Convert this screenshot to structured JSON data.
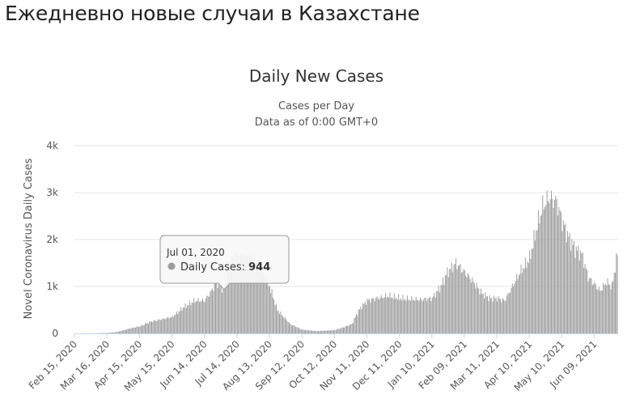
{
  "page": {
    "heading": "Ежедневно новые случаи в Казахстане"
  },
  "colors": {
    "bar": "#9c9c9c",
    "grid": "#e6e6e6",
    "axis": "#ccd6eb"
  },
  "chart_data": {
    "type": "bar",
    "title": "Daily New Cases",
    "subtitle_lines": [
      "Cases per Day",
      "Data as of 0:00 GMT+0"
    ],
    "ylabel": "Novel Coronavirus Daily Cases",
    "xlabel": "",
    "ylim": [
      0,
      4000
    ],
    "y_ticks": [
      {
        "value": 0,
        "label": "0"
      },
      {
        "value": 1000,
        "label": "1k"
      },
      {
        "value": 2000,
        "label": "2k"
      },
      {
        "value": 3000,
        "label": "3k"
      },
      {
        "value": 4000,
        "label": "4k"
      }
    ],
    "x_start": "2020-02-15",
    "x_end": "2021-06-30",
    "x_tick_labels": [
      "Feb 15, 2020",
      "Mar 16, 2020",
      "Apr 15, 2020",
      "May 15, 2020",
      "Jun 14, 2020",
      "Jul 14, 2020",
      "Aug 13, 2020",
      "Sep 12, 2020",
      "Oct 12, 2020",
      "Nov 11, 2020",
      "Dec 11, 2020",
      "Jan 10, 2021",
      "Feb 09, 2021",
      "Mar 11, 2021",
      "Apr 10, 2021",
      "May 10, 2021",
      "Jun 09, 2021"
    ],
    "x_tick_dates": [
      "2020-02-15",
      "2020-03-16",
      "2020-04-15",
      "2020-05-15",
      "2020-06-14",
      "2020-07-14",
      "2020-08-13",
      "2020-09-12",
      "2020-10-12",
      "2020-11-11",
      "2020-12-11",
      "2021-01-10",
      "2021-02-09",
      "2021-03-11",
      "2021-04-10",
      "2021-05-10",
      "2021-06-09"
    ],
    "series": [
      {
        "dates": [
          "2020-02-15",
          "2020-03-01",
          "2020-03-16",
          "2020-03-25",
          "2020-04-05",
          "2020-04-15",
          "2020-04-25",
          "2020-05-05",
          "2020-05-15",
          "2020-05-25",
          "2020-06-05",
          "2020-06-14",
          "2020-06-20",
          "2020-06-25",
          "2020-07-01",
          "2020-07-08",
          "2020-07-14",
          "2020-07-20",
          "2020-07-28",
          "2020-08-05",
          "2020-08-13",
          "2020-08-20",
          "2020-09-01",
          "2020-09-12",
          "2020-09-25",
          "2020-10-05",
          "2020-10-12",
          "2020-10-20",
          "2020-10-28",
          "2020-11-01",
          "2020-11-05",
          "2020-11-11",
          "2020-11-20",
          "2020-11-30",
          "2020-12-11",
          "2020-12-20",
          "2020-12-31",
          "2021-01-10",
          "2021-01-18",
          "2021-01-24",
          "2021-02-01",
          "2021-02-09",
          "2021-02-17",
          "2021-02-25",
          "2021-03-04",
          "2021-03-11",
          "2021-03-18",
          "2021-03-25",
          "2021-04-01",
          "2021-04-10",
          "2021-04-17",
          "2021-04-22",
          "2021-04-28",
          "2021-05-05",
          "2021-05-10",
          "2021-05-15",
          "2021-05-22",
          "2021-05-28",
          "2021-06-03",
          "2021-06-09",
          "2021-06-14",
          "2021-06-20",
          "2021-06-25",
          "2021-06-30"
        ],
        "values": [
          0,
          0,
          10,
          30,
          100,
          150,
          250,
          300,
          350,
          550,
          700,
          700,
          900,
          1100,
          944,
          1550,
          1700,
          1650,
          1600,
          1400,
          1000,
          500,
          200,
          80,
          50,
          60,
          70,
          130,
          200,
          400,
          550,
          700,
          750,
          800,
          750,
          730,
          720,
          750,
          1000,
          1300,
          1500,
          1300,
          1100,
          850,
          750,
          750,
          700,
          1000,
          1300,
          1600,
          2300,
          2700,
          2900,
          2800,
          2400,
          2100,
          1800,
          1700,
          1200,
          1050,
          900,
          1100,
          1000,
          1700
        ]
      }
    ],
    "tooltip": {
      "date": "Jul 01, 2020",
      "series_label": "Daily Cases:",
      "value": "944"
    }
  }
}
